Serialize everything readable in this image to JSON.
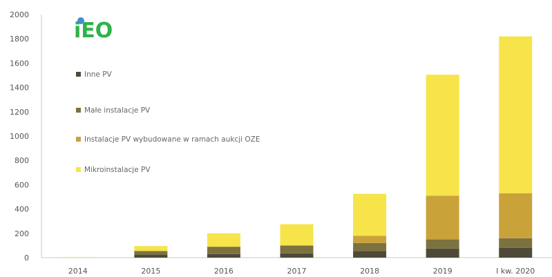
{
  "logo": {
    "text": "iEO",
    "text_color": "#2fb24a",
    "dot_color": "#3d8fd1"
  },
  "colors": {
    "inne_pv": "#4f4a38",
    "male_instalacje_pv": "#7c7240",
    "instalacje_aukcje": "#c9a23a",
    "mikroinstalacje": "#f6e44a"
  },
  "chart_data": {
    "type": "bar",
    "stacked": true,
    "title": "",
    "xlabel": "",
    "ylabel": "",
    "ylim": [
      0,
      2000
    ],
    "yticks": [
      0,
      200,
      400,
      600,
      800,
      1000,
      1200,
      1400,
      1600,
      1800,
      2000
    ],
    "ytick_labels": [
      "0",
      "200",
      "400",
      "600",
      "800",
      "1000",
      "1200",
      "1400",
      "1600",
      "1800",
      "2000"
    ],
    "categories": [
      "2014",
      "2015",
      "2016",
      "2017",
      "2018",
      "2019",
      "I kw. 2020"
    ],
    "grid": false,
    "legend_position": "top-left",
    "series": [
      {
        "name": "Inne PV",
        "color": "#4f4a38",
        "values": [
          0,
          25,
          30,
          35,
          55,
          75,
          80
        ]
      },
      {
        "name": "Małe instalacje PV",
        "color": "#7c7240",
        "values": [
          0,
          30,
          60,
          65,
          65,
          75,
          80
        ]
      },
      {
        "name": "Instalacje PV wybudowane w ramach aukcji OZE",
        "color": "#c9a23a",
        "values": [
          0,
          0,
          0,
          0,
          60,
          360,
          370
        ]
      },
      {
        "name": "Mikroinstalacje PV",
        "color": "#f6e44a",
        "values": [
          5,
          40,
          110,
          175,
          345,
          995,
          1290
        ]
      }
    ]
  }
}
